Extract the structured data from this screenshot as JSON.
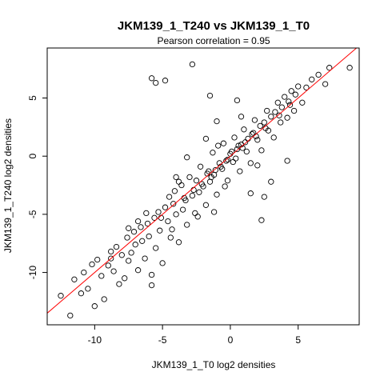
{
  "chart_data": {
    "type": "scatter",
    "title": "JKM139_1_T240 vs JKM139_1_T0",
    "subtitle": "Pearson correlation =  0.95",
    "xlabel": "JKM139_1_T0 log2 densities",
    "ylabel": "JKM139_1_T240 log2 densities",
    "xlim": [
      -13.5,
      9.5
    ],
    "ylim": [
      -14.5,
      9.3
    ],
    "xticks": [
      -10,
      -5,
      0,
      5
    ],
    "yticks": [
      -10,
      -5,
      0,
      5
    ],
    "grid": false,
    "legend": "none",
    "point_color": "#000000",
    "fit_line": {
      "color": "#ff0000",
      "slope": 1.0,
      "intercept": 0.0
    },
    "correlation": 0.95,
    "points": [
      [
        -12.5,
        -12.0
      ],
      [
        -11.8,
        -13.7
      ],
      [
        -11.5,
        -10.6
      ],
      [
        -11.0,
        -11.8
      ],
      [
        -10.8,
        -10.0
      ],
      [
        -10.5,
        -11.4
      ],
      [
        -10.2,
        -9.3
      ],
      [
        -10.0,
        -12.9
      ],
      [
        -9.8,
        -8.9
      ],
      [
        -9.5,
        -10.3
      ],
      [
        -9.3,
        -12.3
      ],
      [
        -9.0,
        -9.4
      ],
      [
        -8.8,
        -8.2
      ],
      [
        -8.6,
        -9.9
      ],
      [
        -8.4,
        -7.8
      ],
      [
        -8.2,
        -11.0
      ],
      [
        -8.0,
        -8.5
      ],
      [
        -7.8,
        -10.5
      ],
      [
        -7.6,
        -7.0
      ],
      [
        -7.5,
        -9.0
      ],
      [
        -7.3,
        -8.3
      ],
      [
        -7.1,
        -6.5
      ],
      [
        -7.0,
        -7.6
      ],
      [
        -6.8,
        -9.8
      ],
      [
        -6.6,
        -6.1
      ],
      [
        -6.5,
        -7.3
      ],
      [
        -6.3,
        -8.8
      ],
      [
        -6.1,
        -5.8
      ],
      [
        -6.0,
        -6.9
      ],
      [
        -5.8,
        -10.2
      ],
      [
        -5.6,
        -5.3
      ],
      [
        -5.5,
        -7.9
      ],
      [
        -5.3,
        -4.8
      ],
      [
        -5.2,
        -6.4
      ],
      [
        -5.0,
        -9.2
      ],
      [
        -4.8,
        -4.4
      ],
      [
        -4.6,
        -5.6
      ],
      [
        -4.5,
        -3.5
      ],
      [
        -4.3,
        -6.3
      ],
      [
        -4.1,
        -3.0
      ],
      [
        -4.0,
        -5.0
      ],
      [
        -3.8,
        -7.4
      ],
      [
        -3.6,
        -2.5
      ],
      [
        -3.5,
        -4.6
      ],
      [
        -3.3,
        -3.8
      ],
      [
        -3.2,
        -5.9
      ],
      [
        -3.0,
        -1.8
      ],
      [
        -2.8,
        -3.4
      ],
      [
        -2.6,
        -4.9
      ],
      [
        -2.5,
        -2.1
      ],
      [
        -2.3,
        -3.1
      ],
      [
        -2.2,
        -0.9
      ],
      [
        -2.0,
        -2.6
      ],
      [
        -1.8,
        -4.2
      ],
      [
        -1.6,
        -1.3
      ],
      [
        -1.5,
        -2.2
      ],
      [
        -1.3,
        0.3
      ],
      [
        -1.2,
        -1.6
      ],
      [
        -1.0,
        -3.3
      ],
      [
        -0.8,
        -0.6
      ],
      [
        -0.6,
        -1.1
      ],
      [
        -0.5,
        1.1
      ],
      [
        -0.3,
        -0.4
      ],
      [
        -0.2,
        -2.1
      ],
      [
        0.0,
        0.2
      ],
      [
        0.2,
        -0.5
      ],
      [
        0.3,
        1.6
      ],
      [
        0.5,
        0.6
      ],
      [
        0.7,
        -1.3
      ],
      [
        0.8,
        1.0
      ],
      [
        1.0,
        2.3
      ],
      [
        1.2,
        0.4
      ],
      [
        1.3,
        1.5
      ],
      [
        1.5,
        -0.6
      ],
      [
        1.7,
        2.0
      ],
      [
        1.8,
        3.1
      ],
      [
        2.0,
        1.4
      ],
      [
        2.2,
        2.6
      ],
      [
        2.3,
        0.5
      ],
      [
        2.5,
        2.9
      ],
      [
        2.7,
        3.9
      ],
      [
        2.8,
        2.2
      ],
      [
        3.0,
        3.4
      ],
      [
        3.2,
        1.6
      ],
      [
        3.3,
        3.8
      ],
      [
        3.5,
        4.6
      ],
      [
        3.7,
        2.9
      ],
      [
        3.8,
        4.2
      ],
      [
        4.0,
        5.1
      ],
      [
        4.2,
        3.3
      ],
      [
        4.3,
        4.7
      ],
      [
        4.5,
        5.6
      ],
      [
        4.7,
        3.9
      ],
      [
        4.8,
        5.3
      ],
      [
        5.0,
        6.0
      ],
      [
        5.3,
        4.6
      ],
      [
        5.6,
        5.9
      ],
      [
        6.0,
        6.6
      ],
      [
        6.5,
        7.0
      ],
      [
        7.3,
        7.6
      ],
      [
        8.8,
        7.6
      ],
      [
        7.0,
        6.2
      ],
      [
        -2.8,
        7.9
      ],
      [
        -5.8,
        6.7
      ],
      [
        -5.5,
        6.3
      ],
      [
        -4.8,
        6.5
      ],
      [
        -1.5,
        5.2
      ],
      [
        -1.0,
        3.0
      ],
      [
        0.5,
        4.8
      ],
      [
        2.5,
        -3.5
      ],
      [
        3.0,
        -2.2
      ],
      [
        4.2,
        -0.4
      ],
      [
        2.3,
        -5.5
      ],
      [
        -5.8,
        -11.1
      ],
      [
        -8.8,
        -8.8
      ],
      [
        -7.5,
        -6.2
      ],
      [
        -6.8,
        -5.6
      ],
      [
        -4.0,
        -1.8
      ],
      [
        -3.2,
        -0.1
      ],
      [
        -1.8,
        1.5
      ],
      [
        -1.2,
        -4.8
      ],
      [
        1.5,
        -3.2
      ],
      [
        0.8,
        3.4
      ],
      [
        -0.4,
        -2.6
      ],
      [
        2.0,
        -0.8
      ],
      [
        -2.4,
        -5.2
      ],
      [
        -3.8,
        -2.2
      ],
      [
        -4.4,
        -7.0
      ],
      [
        -6.2,
        -4.9
      ],
      [
        -0.9,
        0.9
      ],
      [
        0.4,
        -0.2
      ],
      [
        1.1,
        1.2
      ],
      [
        -1.7,
        -1.5
      ],
      [
        -2.1,
        -2.4
      ],
      [
        0.9,
        0.7
      ],
      [
        1.6,
        1.9
      ],
      [
        -0.7,
        -0.9
      ],
      [
        0.1,
        0.4
      ],
      [
        -0.2,
        -0.3
      ],
      [
        0.6,
        0.9
      ],
      [
        -1.4,
        -1.8
      ],
      [
        -2.7,
        -2.9
      ],
      [
        2.6,
        2.4
      ],
      [
        3.6,
        3.5
      ],
      [
        -3.4,
        -3.6
      ],
      [
        -4.2,
        -4.1
      ],
      [
        -5.1,
        -5.3
      ],
      [
        4.4,
        4.4
      ],
      [
        -1.1,
        -1.2
      ],
      [
        1.9,
        1.7
      ]
    ]
  }
}
